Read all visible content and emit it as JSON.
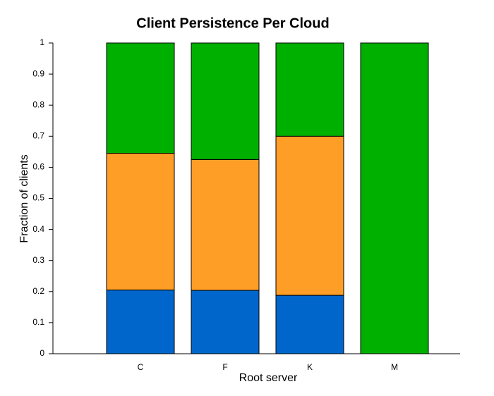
{
  "chart_data": {
    "type": "stacked-bar",
    "title": "Client Persistence Per Cloud",
    "x_label": "Root server",
    "y_label": "Fraction of clients",
    "categories": [
      "C",
      "F",
      "K",
      "M"
    ],
    "series": [
      {
        "color": "#0066cc",
        "values": [
          0.205,
          0.204,
          0.188,
          0
        ]
      },
      {
        "color": "#ff9e27",
        "values": [
          0.44,
          0.421,
          0.512,
          0
        ]
      },
      {
        "color": "#00b000",
        "values": [
          0.355,
          0.375,
          0.3,
          1
        ]
      }
    ],
    "ylim": [
      0,
      1
    ],
    "yticks": [
      0,
      0.1,
      0.2,
      0.3,
      0.4,
      0.5,
      0.6,
      0.7,
      0.8,
      0.9,
      1
    ],
    "grid": false
  }
}
